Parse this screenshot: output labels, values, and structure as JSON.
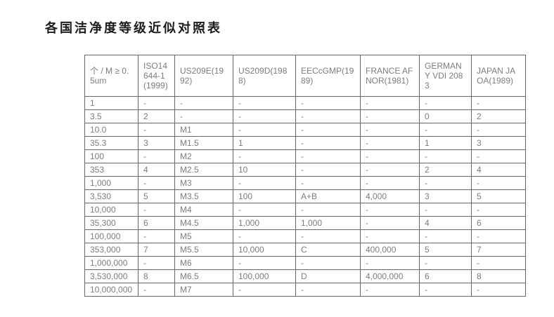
{
  "page": {
    "title": "各国洁净度等级近似对照表"
  },
  "table": {
    "columns": [
      "个 / M ≥ 0.5um",
      "ISO14644-1(1999)",
      "US209E(1992)",
      "US209D(1988)",
      "EECcGMP(1989)",
      "FRANCE AFNOR(1981)",
      "GERMANY VDI 2083",
      "JAPAN JAOA(1989)"
    ],
    "rows": [
      [
        "1",
        "-",
        "-",
        "-",
        "-",
        "-",
        "-",
        "-"
      ],
      [
        "3.5",
        "2",
        "-",
        "-",
        "-",
        "-",
        "0",
        "2"
      ],
      [
        "10.0",
        "-",
        "M1",
        "-",
        "-",
        "-",
        "-",
        "-"
      ],
      [
        "35.3",
        "3",
        "M1.5",
        "1",
        "-",
        "-",
        "1",
        "3"
      ],
      [
        "100",
        "-",
        "M2",
        "-",
        "-",
        "-",
        "-",
        "-"
      ],
      [
        "353",
        "4",
        "M2.5",
        "10",
        "-",
        "-",
        "2",
        "4"
      ],
      [
        "1,000",
        "-",
        "M3",
        "-",
        "-",
        "-",
        "-",
        "-"
      ],
      [
        "3,530",
        "5",
        "M3.5",
        "100",
        "A+B",
        "4,000",
        "3",
        "5"
      ],
      [
        "10,000",
        "-",
        "M4",
        "-",
        "-",
        "-",
        "-",
        "-"
      ],
      [
        "35,300",
        "6",
        "M4.5",
        "1,000",
        "1,000",
        "-",
        "4",
        "6"
      ],
      [
        "100,000",
        "-",
        "M5",
        "-",
        "-",
        "-",
        "-",
        "-"
      ],
      [
        "353,000",
        "7",
        "M5.5",
        "10,000",
        "C",
        "400,000",
        "5",
        "7"
      ],
      [
        "1,000,000",
        "-",
        "M6",
        "-",
        "-",
        "-",
        "-",
        "-"
      ],
      [
        "3,530,000",
        "8",
        "M6.5",
        "100,000",
        "D",
        "4,000,000",
        "6",
        "8"
      ],
      [
        "10,000,000",
        "-",
        "M7",
        "-",
        "-",
        "-",
        "-",
        "-"
      ]
    ]
  },
  "colors": {
    "title_text": "#1c1c1c",
    "cell_text": "#7d7d7d",
    "border": "#666666",
    "background": "#ffffff"
  }
}
